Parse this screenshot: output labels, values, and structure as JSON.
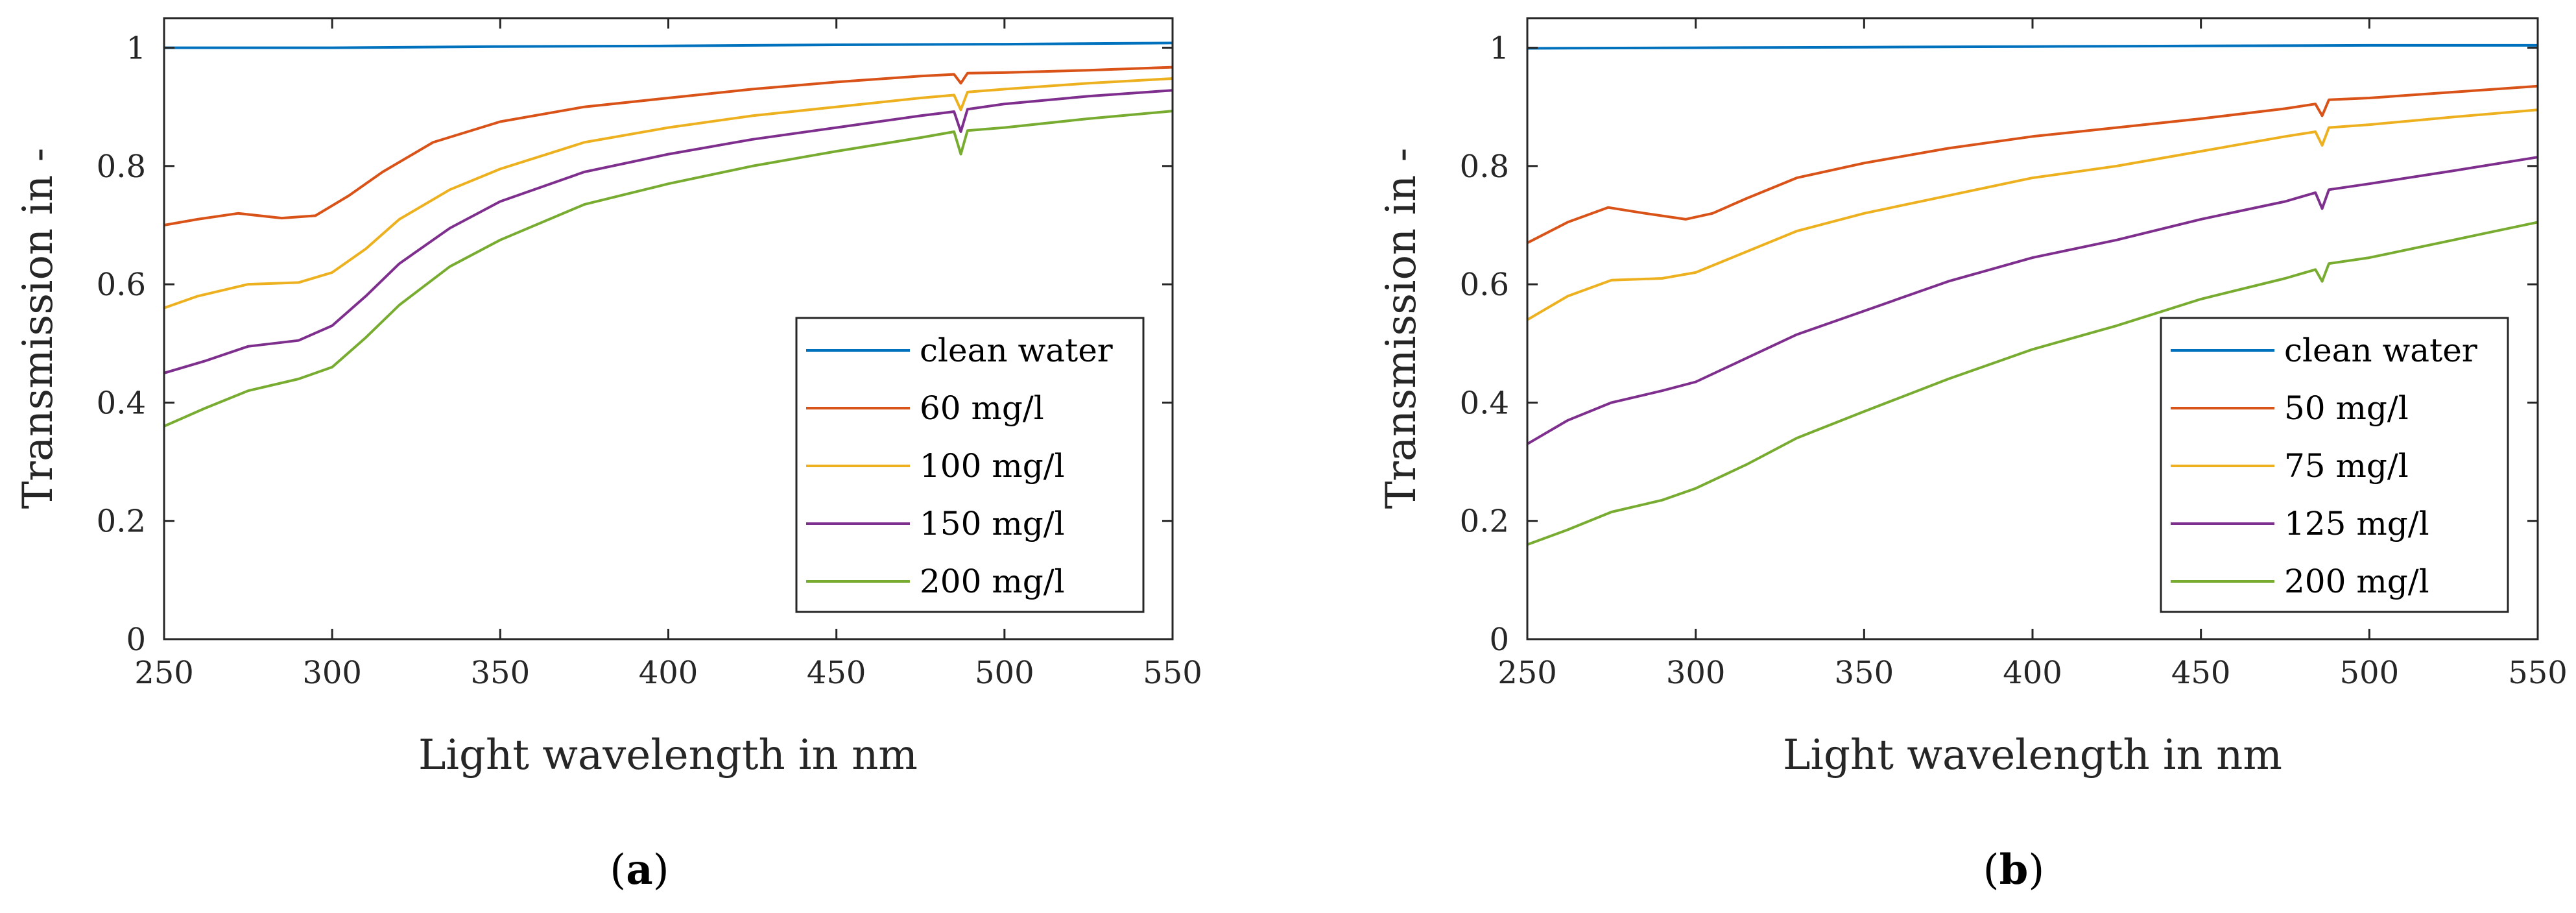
{
  "chart_data": [
    {
      "panel_label": {
        "open": "(",
        "letter": "a",
        "close": ")"
      },
      "type": "line",
      "xlabel": "Light wavelength in nm",
      "ylabel": "Transmission in -",
      "xlim": [
        250,
        550
      ],
      "ylim": [
        0,
        1.05
      ],
      "xticks": [
        250,
        300,
        350,
        400,
        450,
        500,
        550
      ],
      "yticks": [
        0,
        0.2,
        0.4,
        0.6,
        0.8,
        1
      ],
      "ytick_labels": [
        "0",
        "0.2",
        "0.4",
        "0.6",
        "0.8",
        "1"
      ],
      "legend_position": "bottom-right",
      "series": [
        {
          "name": "clean water",
          "color": "#0072BD",
          "x": [
            250,
            300,
            350,
            400,
            450,
            500,
            550
          ],
          "y": [
            1.0,
            1.0,
            1.002,
            1.003,
            1.005,
            1.006,
            1.008
          ]
        },
        {
          "name": "60 mg/l",
          "color": "#D95319",
          "x": [
            250,
            260,
            272,
            285,
            295,
            305,
            315,
            330,
            350,
            375,
            400,
            425,
            450,
            475,
            485,
            487,
            489,
            500,
            525,
            550
          ],
          "y": [
            0.7,
            0.71,
            0.72,
            0.712,
            0.716,
            0.75,
            0.79,
            0.84,
            0.875,
            0.9,
            0.915,
            0.93,
            0.942,
            0.952,
            0.955,
            0.94,
            0.957,
            0.958,
            0.962,
            0.967
          ]
        },
        {
          "name": "100 mg/l",
          "color": "#EDB120",
          "x": [
            250,
            260,
            275,
            290,
            300,
            310,
            320,
            335,
            350,
            375,
            400,
            425,
            450,
            475,
            485,
            487,
            489,
            500,
            525,
            550
          ],
          "y": [
            0.56,
            0.58,
            0.6,
            0.603,
            0.62,
            0.66,
            0.71,
            0.76,
            0.795,
            0.84,
            0.865,
            0.885,
            0.9,
            0.915,
            0.92,
            0.895,
            0.925,
            0.93,
            0.94,
            0.948
          ]
        },
        {
          "name": "150 mg/l",
          "color": "#7E2F8E",
          "x": [
            250,
            262,
            275,
            290,
            300,
            310,
            320,
            335,
            350,
            375,
            400,
            425,
            450,
            475,
            485,
            487,
            489,
            500,
            525,
            550
          ],
          "y": [
            0.45,
            0.47,
            0.495,
            0.505,
            0.53,
            0.58,
            0.635,
            0.695,
            0.74,
            0.79,
            0.82,
            0.845,
            0.865,
            0.885,
            0.892,
            0.858,
            0.896,
            0.905,
            0.918,
            0.928
          ]
        },
        {
          "name": "200 mg/l",
          "color": "#77AC30",
          "x": [
            250,
            262,
            275,
            290,
            300,
            310,
            320,
            335,
            350,
            375,
            400,
            425,
            450,
            475,
            485,
            487,
            489,
            500,
            525,
            550
          ],
          "y": [
            0.36,
            0.39,
            0.42,
            0.44,
            0.46,
            0.51,
            0.565,
            0.63,
            0.675,
            0.735,
            0.77,
            0.8,
            0.825,
            0.848,
            0.858,
            0.82,
            0.86,
            0.865,
            0.88,
            0.893
          ]
        }
      ]
    },
    {
      "panel_label": {
        "open": "(",
        "letter": "b",
        "close": ")"
      },
      "type": "line",
      "xlabel": "Light wavelength in nm",
      "ylabel": "Transmission in -",
      "xlim": [
        250,
        550
      ],
      "ylim": [
        0,
        1.05
      ],
      "xticks": [
        250,
        300,
        350,
        400,
        450,
        500,
        550
      ],
      "yticks": [
        0,
        0.2,
        0.4,
        0.6,
        0.8,
        1
      ],
      "ytick_labels": [
        "0",
        "0.2",
        "0.4",
        "0.6",
        "0.8",
        "1"
      ],
      "legend_position": "bottom-right",
      "series": [
        {
          "name": "clean water",
          "color": "#0072BD",
          "x": [
            250,
            300,
            350,
            400,
            450,
            500,
            550
          ],
          "y": [
            0.999,
            1.0,
            1.001,
            1.002,
            1.003,
            1.004,
            1.004
          ]
        },
        {
          "name": "50 mg/l",
          "color": "#D95319",
          "x": [
            250,
            262,
            274,
            285,
            297,
            305,
            315,
            330,
            350,
            375,
            400,
            425,
            450,
            475,
            484,
            486,
            488,
            500,
            525,
            550
          ],
          "y": [
            0.67,
            0.705,
            0.73,
            0.72,
            0.71,
            0.72,
            0.745,
            0.78,
            0.805,
            0.83,
            0.85,
            0.865,
            0.88,
            0.897,
            0.905,
            0.885,
            0.912,
            0.915,
            0.925,
            0.935
          ]
        },
        {
          "name": "75 mg/l",
          "color": "#EDB120",
          "x": [
            250,
            262,
            275,
            290,
            300,
            315,
            330,
            350,
            375,
            400,
            425,
            450,
            475,
            484,
            486,
            488,
            500,
            525,
            550
          ],
          "y": [
            0.54,
            0.58,
            0.607,
            0.61,
            0.62,
            0.655,
            0.69,
            0.72,
            0.75,
            0.78,
            0.8,
            0.825,
            0.85,
            0.858,
            0.835,
            0.865,
            0.87,
            0.883,
            0.895
          ]
        },
        {
          "name": "125 mg/l",
          "color": "#7E2F8E",
          "x": [
            250,
            262,
            275,
            290,
            300,
            315,
            330,
            350,
            375,
            400,
            425,
            450,
            475,
            484,
            486,
            488,
            500,
            525,
            550
          ],
          "y": [
            0.33,
            0.37,
            0.4,
            0.42,
            0.435,
            0.475,
            0.515,
            0.555,
            0.605,
            0.645,
            0.675,
            0.71,
            0.74,
            0.755,
            0.728,
            0.76,
            0.77,
            0.792,
            0.815
          ]
        },
        {
          "name": "200 mg/l",
          "color": "#77AC30",
          "x": [
            250,
            262,
            275,
            290,
            300,
            315,
            330,
            350,
            375,
            400,
            425,
            450,
            475,
            484,
            486,
            488,
            500,
            525,
            550
          ],
          "y": [
            0.16,
            0.185,
            0.215,
            0.235,
            0.255,
            0.295,
            0.34,
            0.385,
            0.44,
            0.49,
            0.53,
            0.575,
            0.61,
            0.625,
            0.605,
            0.635,
            0.645,
            0.675,
            0.705
          ]
        }
      ]
    }
  ]
}
